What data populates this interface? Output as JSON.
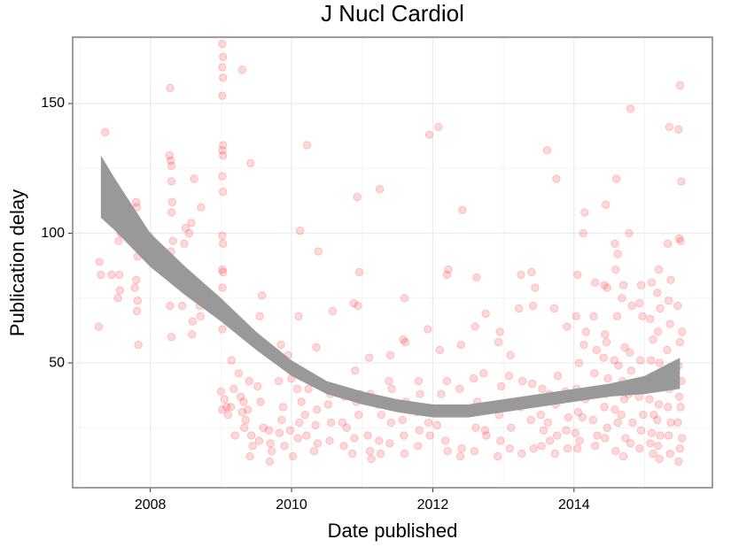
{
  "chart_data": {
    "type": "scatter",
    "title": "J Nucl Cardiol",
    "x_label": "Date published",
    "y_label": "Publication delay",
    "xlim": [
      2006.9,
      2015.96
    ],
    "ylim": [
      1.9,
      175.6
    ],
    "xticks": [
      2008,
      2010,
      2012,
      2014
    ],
    "yticks": [
      50,
      100,
      150
    ],
    "grid": true,
    "series": [
      {
        "color": "#ff0000",
        "x": [
          2007.28,
          2007.3,
          2007.27,
          2007.36,
          2007.45,
          2007.55,
          2007.58,
          2007.55,
          2007.57,
          2007.54,
          2007.56,
          2007.8,
          2007.81,
          2007.79,
          2007.82,
          2007.8,
          2007.78,
          2007.82,
          2007.81,
          2007.83,
          2007.98,
          2008.0,
          2008.12,
          2008.28,
          2008.27,
          2008.29,
          2008.3,
          2008.3,
          2008.31,
          2008.3,
          2008.32,
          2008.29,
          2008.31,
          2008.28,
          2008.3,
          2008.5,
          2008.55,
          2008.48,
          2008.52,
          2008.45,
          2008.62,
          2008.58,
          2008.6,
          2008.59,
          2008.72,
          2008.7,
          2008.71,
          2009.02,
          2009.03,
          2009.02,
          2009.03,
          2009.02,
          2009.03,
          2009.02,
          2009.03,
          2009.02,
          2009.03,
          2009.02,
          2009.03,
          2009.02,
          2009.03,
          2009.02,
          2009.03,
          2009.02,
          2009.0,
          2009.05,
          2009.08,
          2009.02,
          2009.1,
          2009.15,
          2009.18,
          2009.14,
          2009.2,
          2009.3,
          2009.25,
          2009.28,
          2009.32,
          2009.3,
          2009.35,
          2009.33,
          2009.42,
          2009.4,
          2009.38,
          2009.43,
          2009.45,
          2009.41,
          2009.58,
          2009.55,
          2009.52,
          2009.56,
          2009.6,
          2009.54,
          2009.68,
          2009.7,
          2009.72,
          2009.69,
          2009.85,
          2009.82,
          2009.88,
          2009.86,
          2009.83,
          2009.95,
          2010.0,
          2009.98,
          2010.02,
          2009.9,
          2010.12,
          2010.1,
          2010.08,
          2010.14,
          2010.11,
          2010.09,
          2010.22,
          2010.2,
          2010.24,
          2010.19,
          2010.21,
          2010.38,
          2010.35,
          2010.33,
          2010.36,
          2010.34,
          2010.37,
          2010.32,
          2010.58,
          2010.55,
          2010.52,
          2010.56,
          2010.54,
          2010.75,
          2010.72,
          2010.78,
          2010.74,
          2010.88,
          2010.9,
          2010.92,
          2010.89,
          2010.86,
          2010.93,
          2010.96,
          2010.94,
          2010.97,
          2010.95,
          2011.1,
          2011.12,
          2011.08,
          2011.11,
          2011.13,
          2011.25,
          2011.22,
          2011.27,
          2011.24,
          2011.26,
          2011.4,
          2011.38,
          2011.42,
          2011.41,
          2011.39,
          2011.6,
          2011.58,
          2011.61,
          2011.62,
          2011.57,
          2011.59,
          2011.6,
          2011.8,
          2011.82,
          2011.78,
          2011.81,
          2011.79,
          2011.95,
          2011.93,
          2011.97,
          2011.94,
          2011.96,
          2012.08,
          2012.2,
          2012.1,
          2012.12,
          2012.06,
          2012.22,
          2012.2,
          2012.24,
          2012.18,
          2012.21,
          2012.42,
          2012.4,
          2012.38,
          2012.43,
          2012.41,
          2012.39,
          2012.62,
          2012.6,
          2012.58,
          2012.63,
          2012.61,
          2012.59,
          2012.75,
          2012.72,
          2012.77,
          2012.74,
          2012.76,
          2012.95,
          2012.93,
          2012.97,
          2012.94,
          2012.96,
          2012.92,
          2013.1,
          2013.08,
          2013.12,
          2013.11,
          2013.09,
          2013.25,
          2013.22,
          2013.27,
          2013.24,
          2013.26,
          2013.4,
          2013.42,
          2013.45,
          2013.41,
          2013.39,
          2013.43,
          2013.55,
          2013.53,
          2013.57,
          2013.54,
          2013.62,
          2013.65,
          2013.63,
          2013.66,
          2013.75,
          2013.72,
          2013.77,
          2013.74,
          2013.76,
          2013.73,
          2013.9,
          2013.88,
          2013.92,
          2013.89,
          2013.91,
          2014.05,
          2014.03,
          2014.07,
          2014.04,
          2014.06,
          2014.02,
          2014.08,
          2014.05,
          2014.15,
          2014.13,
          2014.17,
          2014.14,
          2014.16,
          2014.12,
          2014.3,
          2014.28,
          2014.32,
          2014.29,
          2014.31,
          2014.27,
          2014.33,
          2014.3,
          2014.45,
          2014.43,
          2014.47,
          2014.44,
          2014.46,
          2014.42,
          2014.48,
          2014.45,
          2014.43,
          2014.47,
          2014.44,
          2014.6,
          2014.58,
          2014.62,
          2014.59,
          2014.61,
          2014.57,
          2014.63,
          2014.6,
          2014.58,
          2014.62,
          2014.59,
          2014.7,
          2014.68,
          2014.72,
          2014.69,
          2014.71,
          2014.67,
          2014.73,
          2014.7,
          2014.8,
          2014.78,
          2014.82,
          2014.79,
          2014.81,
          2014.77,
          2014.83,
          2014.8,
          2014.95,
          2014.93,
          2014.97,
          2014.94,
          2014.96,
          2014.92,
          2014.98,
          2014.95,
          2014.93,
          2015.1,
          2015.08,
          2015.12,
          2015.09,
          2015.11,
          2015.07,
          2015.13,
          2015.1,
          2015.08,
          2015.12,
          2015.2,
          2015.18,
          2015.22,
          2015.19,
          2015.21,
          2015.17,
          2015.23,
          2015.2,
          2015.18,
          2015.22,
          2015.19,
          2015.21,
          2015.35,
          2015.33,
          2015.37,
          2015.34,
          2015.36,
          2015.32,
          2015.38,
          2015.35,
          2015.33,
          2015.37,
          2015.34,
          2015.36,
          2015.5,
          2015.48,
          2015.52,
          2015.49,
          2015.51,
          2015.47,
          2015.53,
          2015.5,
          2015.48,
          2015.52,
          2015.49,
          2015.51,
          2015.47,
          2015.53,
          2015.5,
          2015.48
        ],
        "values": [
          89,
          84,
          64,
          139,
          84,
          102,
          100,
          97,
          78,
          75,
          84,
          112,
          110,
          102,
          91,
          82,
          79,
          74,
          70,
          57,
          99,
          96,
          88,
          156,
          130,
          128,
          126,
          120,
          112,
          108,
          97,
          93,
          89,
          72,
          60,
          102,
          100,
          96,
          82,
          72,
          121,
          104,
          66,
          61,
          110,
          72,
          68,
          173,
          168,
          164,
          160,
          153,
          134,
          132,
          130,
          122,
          116,
          99,
          96,
          86,
          85,
          79,
          72,
          63,
          39,
          36,
          33,
          32,
          30,
          51,
          40,
          33,
          22,
          163,
          46,
          37,
          35,
          31,
          28,
          25,
          127,
          43,
          32,
          22,
          18,
          14,
          76,
          68,
          41,
          35,
          25,
          20,
          24,
          19,
          16,
          12,
          57,
          43,
          33,
          28,
          23,
          53,
          44,
          24,
          14,
          18,
          101,
          68,
          40,
          35,
          27,
          21,
          134,
          46,
          40,
          30,
          22,
          93,
          56,
          43,
          32,
          26,
          19,
          16,
          70,
          38,
          34,
          27,
          20,
          37,
          27,
          25,
          18,
          73,
          47,
          35,
          21,
          15,
          114,
          85,
          72,
          38,
          30,
          52,
          38,
          22,
          16,
          13,
          117,
          34,
          30,
          20,
          15,
          53,
          43,
          40,
          27,
          19,
          75,
          59,
          58,
          35,
          28,
          22,
          15,
          43,
          38,
          31,
          24,
          18,
          138,
          63,
          32,
          27,
          22,
          141,
          84,
          55,
          38,
          26,
          86,
          43,
          32,
          20,
          16,
          109,
          57,
          40,
          32,
          17,
          14,
          83,
          64,
          44,
          35,
          25,
          16,
          69,
          46,
          32,
          24,
          22,
          62,
          58,
          41,
          30,
          20,
          14,
          53,
          45,
          35,
          25,
          17,
          84,
          71,
          43,
          33,
          15,
          85,
          72,
          79,
          42,
          28,
          17,
          40,
          30,
          24,
          18,
          132,
          38,
          27,
          20,
          121,
          71,
          45,
          34,
          22,
          15,
          64,
          39,
          29,
          24,
          17,
          84,
          68,
          50,
          40,
          31,
          23,
          20,
          17,
          108,
          100,
          62,
          57,
          36,
          29,
          81,
          68,
          55,
          46,
          39,
          28,
          22,
          18,
          111,
          80,
          79,
          61,
          58,
          52,
          44,
          38,
          33,
          25,
          21,
          121,
          96,
          92,
          86,
          68,
          51,
          49,
          40,
          32,
          27,
          16,
          80,
          75,
          56,
          43,
          36,
          30,
          21,
          14,
          148,
          100,
          72,
          54,
          47,
          38,
          27,
          19,
          80,
          73,
          68,
          51,
          42,
          37,
          30,
          24,
          17,
          81,
          67,
          59,
          51,
          45,
          36,
          30,
          23,
          19,
          15,
          86,
          77,
          71,
          62,
          50,
          44,
          41,
          34,
          28,
          22,
          18,
          13,
          141,
          96,
          82,
          74,
          65,
          55,
          47,
          40,
          33,
          27,
          22,
          15,
          157,
          140,
          120,
          98,
          97,
          72,
          62,
          58,
          49,
          43,
          37,
          33,
          27,
          21,
          17,
          12
        ]
      }
    ],
    "band": {
      "color": "#999999",
      "x": [
        2007.3,
        2007.5,
        2008.0,
        2008.5,
        2009.0,
        2009.5,
        2010.0,
        2010.5,
        2011.0,
        2011.5,
        2012.0,
        2012.5,
        2013.0,
        2013.5,
        2014.0,
        2014.5,
        2015.0,
        2015.5
      ],
      "upper": [
        130,
        121,
        100,
        87,
        75,
        62,
        51,
        43,
        39,
        36,
        34,
        34,
        36,
        38,
        40,
        42,
        45,
        52
      ],
      "lower": [
        106,
        101,
        87,
        76,
        66,
        55,
        45,
        38,
        34,
        31,
        29,
        29,
        31,
        33,
        35,
        37,
        38,
        40
      ]
    }
  }
}
